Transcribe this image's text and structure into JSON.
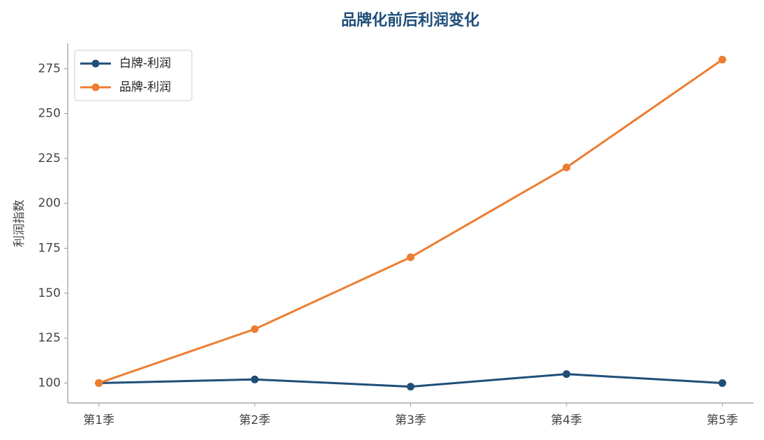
{
  "chart_data": {
    "type": "line",
    "title": "品牌化前后利润变化",
    "y_label": "利润指数",
    "categories": [
      "第1季",
      "第2季",
      "第3季",
      "第4季",
      "第5季"
    ],
    "series": [
      {
        "name": "白牌-利润",
        "color": "#1f4e79",
        "values": [
          100,
          102,
          98,
          105,
          100
        ]
      },
      {
        "name": "品牌-利润",
        "color": "#ed7d31",
        "values": [
          100,
          130,
          170,
          220,
          280
        ]
      }
    ],
    "ylim": [
      88.9,
      289.1
    ],
    "yticks": [
      100,
      125,
      150,
      175,
      200,
      225,
      250,
      275
    ],
    "grid": false,
    "legend": "upper left"
  }
}
